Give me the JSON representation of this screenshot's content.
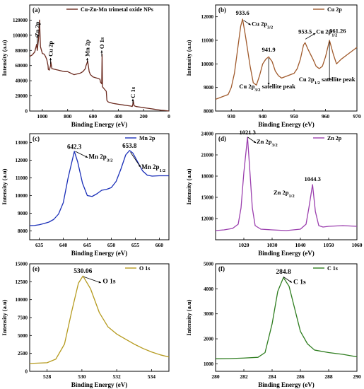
{
  "figure": {
    "panels": [
      {
        "label": "(a)",
        "legend": "Cu-Zn-Mn trimetal oxide NPs",
        "xlabel": "Binding Energy (eV)",
        "ylabel": "Intensity (a.u)",
        "color": "#6b2a1f"
      },
      {
        "label": "(b)",
        "legend": "Cu 2p",
        "xlabel": "Binding Energy (eV)",
        "ylabel": "Intensity (a.u)",
        "color": "#a05a2c"
      },
      {
        "label": "(c)",
        "legend": "Mn 2p",
        "xlabel": "Binding Energy (eV)",
        "ylabel": "Intensity (a.u)",
        "color": "#1a2fb8"
      },
      {
        "label": "(d)",
        "legend": "Zn 2p",
        "xlabel": "Binding Energy (eV)",
        "ylabel": "Intensity (a.u)",
        "color": "#9b3fae"
      },
      {
        "label": "(e)",
        "legend": "O 1s",
        "xlabel": "Binding Energy (eV)",
        "ylabel": "Intensity (a.u)",
        "color": "#b59a1e"
      },
      {
        "label": "(f)",
        "legend": "C 1s",
        "xlabel": "Binding Energy (eV)",
        "ylabel": "Intensity (a.u)",
        "color": "#2e7d1f"
      }
    ]
  },
  "chart_data": [
    {
      "type": "line",
      "title": "(a)",
      "xlabel": "Binding Energy (eV)",
      "ylabel": "Intensity (a.u)",
      "xlim": [
        1100,
        0
      ],
      "x_reversed": true,
      "ylim": [
        0,
        140000
      ],
      "xticks": [
        1000,
        800,
        600,
        400,
        200,
        0
      ],
      "yticks": [
        0,
        20000,
        40000,
        60000,
        80000,
        100000,
        120000
      ],
      "series": [
        {
          "name": "Cu-Zn-Mn trimetal oxide NPs",
          "color": "#6b2a1f",
          "x": [
            1100,
            1080,
            1060,
            1045,
            1040,
            1030,
            1022,
            1015,
            1000,
            985,
            975,
            965,
            955,
            953,
            945,
            935,
            933,
            925,
            900,
            875,
            850,
            825,
            800,
            775,
            750,
            725,
            700,
            680,
            660,
            655,
            650,
            642,
            635,
            630,
            620,
            600,
            580,
            560,
            545,
            540,
            531,
            528,
            525,
            515,
            505,
            495,
            490,
            480,
            460,
            440,
            420,
            400,
            380,
            360,
            340,
            320,
            300,
            290,
            285,
            282,
            275,
            260,
            240,
            220,
            200,
            180,
            160,
            140,
            120,
            100,
            80,
            60,
            40,
            20,
            0
          ],
          "y": [
            72000,
            74000,
            78000,
            88000,
            80000,
            95000,
            120000,
            85000,
            76000,
            75000,
            72000,
            68000,
            60000,
            55000,
            54000,
            60000,
            65000,
            56000,
            55000,
            54000,
            53000,
            52000,
            52000,
            50000,
            48000,
            49000,
            50000,
            52000,
            56000,
            60000,
            62000,
            66000,
            58000,
            52000,
            48000,
            45000,
            44000,
            43000,
            42000,
            38000,
            36000,
            75000,
            32000,
            30000,
            28000,
            26000,
            14000,
            12000,
            11000,
            10000,
            9500,
            9000,
            8500,
            8000,
            7500,
            7000,
            6500,
            6000,
            9000,
            14000,
            7000,
            6000,
            5500,
            5000,
            4500,
            4000,
            3500,
            3000,
            2500,
            2000,
            1500,
            1000,
            800,
            500,
            0
          ]
        }
      ],
      "annotations": [
        "Zn 2p",
        "Cu 2p",
        "Mn 2p",
        "O 1s",
        "C 1s"
      ]
    },
    {
      "type": "line",
      "title": "(b)",
      "xlabel": "Binding Energy (eV)",
      "ylabel": "Intensity (a.u)",
      "xlim": [
        925,
        970
      ],
      "ylim": [
        8000,
        12500
      ],
      "xticks": [
        930,
        940,
        950,
        960,
        970
      ],
      "yticks": [
        8000,
        9000,
        10000,
        11000,
        12000
      ],
      "series": [
        {
          "name": "Cu 2p",
          "color": "#a05a2c",
          "x": [
            925,
            927,
            929,
            930,
            931,
            932,
            933,
            933.6,
            934.5,
            936,
            937,
            938,
            939,
            940,
            941,
            941.9,
            943,
            944,
            945,
            946,
            948,
            950,
            951,
            952,
            953,
            953.5,
            954.5,
            956,
            957,
            958,
            959,
            960,
            961.26,
            962.5,
            963.5,
            965,
            967,
            970
          ],
          "y": [
            8500,
            8600,
            8700,
            9000,
            9600,
            10600,
            11600,
            11900,
            11200,
            9900,
            9200,
            9100,
            9500,
            10000,
            10200,
            10300,
            10100,
            9700,
            9500,
            9400,
            9500,
            9600,
            9800,
            10200,
            10800,
            10900,
            10600,
            10200,
            9900,
            9800,
            9900,
            10300,
            11000,
            10400,
            10000,
            10200,
            10400,
            10700
          ]
        }
      ],
      "annotations": [
        "933.6",
        "Cu 2p3/2",
        "941.9",
        "Cu 2p3/2 satellite peak",
        "953.5",
        "Cu 2p1/2",
        "961.26",
        "Cu 2p1/2 satellite peak"
      ]
    },
    {
      "type": "line",
      "title": "(c)",
      "xlabel": "Binding Energy (eV)",
      "ylabel": "Intensity (a.u)",
      "xlim": [
        633,
        662
      ],
      "ylim": [
        7500,
        13500
      ],
      "xticks": [
        635,
        640,
        645,
        650,
        655,
        660
      ],
      "yticks": [
        8000,
        9000,
        10000,
        11000,
        12000,
        13000
      ],
      "series": [
        {
          "name": "Mn 2p",
          "color": "#1a2fb8",
          "x": [
            633,
            634,
            635,
            636,
            637,
            638,
            639,
            640,
            641,
            642.3,
            643,
            644,
            645,
            646,
            647,
            648,
            649,
            650,
            651,
            652,
            653,
            653.8,
            654.5,
            655.5,
            656.5,
            657.5,
            658.5,
            660,
            662
          ],
          "y": [
            8300,
            8310,
            8350,
            8420,
            8500,
            8650,
            8950,
            9600,
            11000,
            12500,
            11900,
            10700,
            10000,
            9950,
            10100,
            10300,
            10350,
            10450,
            10800,
            11500,
            12300,
            12550,
            12400,
            11900,
            11400,
            11150,
            11100,
            11120,
            11120
          ]
        }
      ],
      "annotations": [
        "642.3",
        "Mn 2p3/2",
        "653.8",
        "Mn 2p1/2"
      ]
    },
    {
      "type": "line",
      "title": "(d)",
      "xlabel": "Binding Energy (eV)",
      "ylabel": "Intensity (a.u)",
      "xlim": [
        1010,
        1060
      ],
      "ylim": [
        9000,
        24000
      ],
      "xticks": [
        1020,
        1030,
        1040,
        1050,
        1060
      ],
      "yticks": [
        12000,
        15000,
        18000,
        21000,
        24000
      ],
      "series": [
        {
          "name": "Zn 2p",
          "color": "#9b3fae",
          "x": [
            1010,
            1013,
            1016,
            1018,
            1019,
            1020,
            1021.3,
            1022,
            1023,
            1024,
            1026,
            1030,
            1035,
            1040,
            1042,
            1043,
            1044.3,
            1045.3,
            1046.5,
            1048,
            1050,
            1055,
            1060
          ],
          "y": [
            10300,
            10400,
            10600,
            11200,
            13500,
            18500,
            23500,
            19500,
            13500,
            11000,
            10500,
            10400,
            10300,
            10500,
            11200,
            13500,
            16800,
            13000,
            11000,
            10800,
            10900,
            11000,
            10900
          ]
        }
      ],
      "annotations": [
        "1021.3",
        "Zn 2p3/2",
        "1044.3",
        "Zn 2p1/2"
      ]
    },
    {
      "type": "line",
      "title": "(e)",
      "xlabel": "Binding Energy (eV)",
      "ylabel": "Intensity (a.u)",
      "xlim": [
        527,
        535
      ],
      "ylim": [
        0,
        15000
      ],
      "xticks": [
        528,
        530,
        532,
        534
      ],
      "yticks": [
        0,
        2500,
        5000,
        7500,
        10000,
        12500,
        15000
      ],
      "series": [
        {
          "name": "O 1s",
          "color": "#b59a1e",
          "x": [
            527,
            528,
            528.5,
            529,
            529.4,
            529.8,
            530.06,
            530.5,
            531,
            531.5,
            532,
            532.5,
            533,
            533.5,
            534,
            534.5,
            535
          ],
          "y": [
            1100,
            1200,
            1700,
            3800,
            8200,
            12300,
            13300,
            11500,
            8200,
            6200,
            5200,
            4500,
            3800,
            3200,
            2700,
            2300,
            2000
          ]
        }
      ],
      "annotations": [
        "530.06",
        "O 1s"
      ]
    },
    {
      "type": "line",
      "title": "(f)",
      "xlabel": "Binding Energy (eV)",
      "ylabel": "Intensity (a.u)",
      "xlim": [
        280,
        290
      ],
      "ylim": [
        700,
        5000
      ],
      "xticks": [
        280,
        282,
        284,
        286,
        288,
        290
      ],
      "yticks": [
        1000,
        2000,
        3000,
        4000,
        5000
      ],
      "series": [
        {
          "name": "C 1s",
          "color": "#2e7d1f",
          "x": [
            280,
            281,
            282,
            283,
            283.5,
            284,
            284.4,
            284.8,
            285.2,
            285.6,
            286,
            286.5,
            287,
            288,
            289,
            290
          ],
          "y": [
            1200,
            1210,
            1230,
            1260,
            1450,
            2600,
            3900,
            4450,
            4100,
            3200,
            2300,
            1800,
            1550,
            1450,
            1380,
            1280
          ]
        }
      ],
      "annotations": [
        "284.8",
        "C 1s"
      ]
    }
  ]
}
